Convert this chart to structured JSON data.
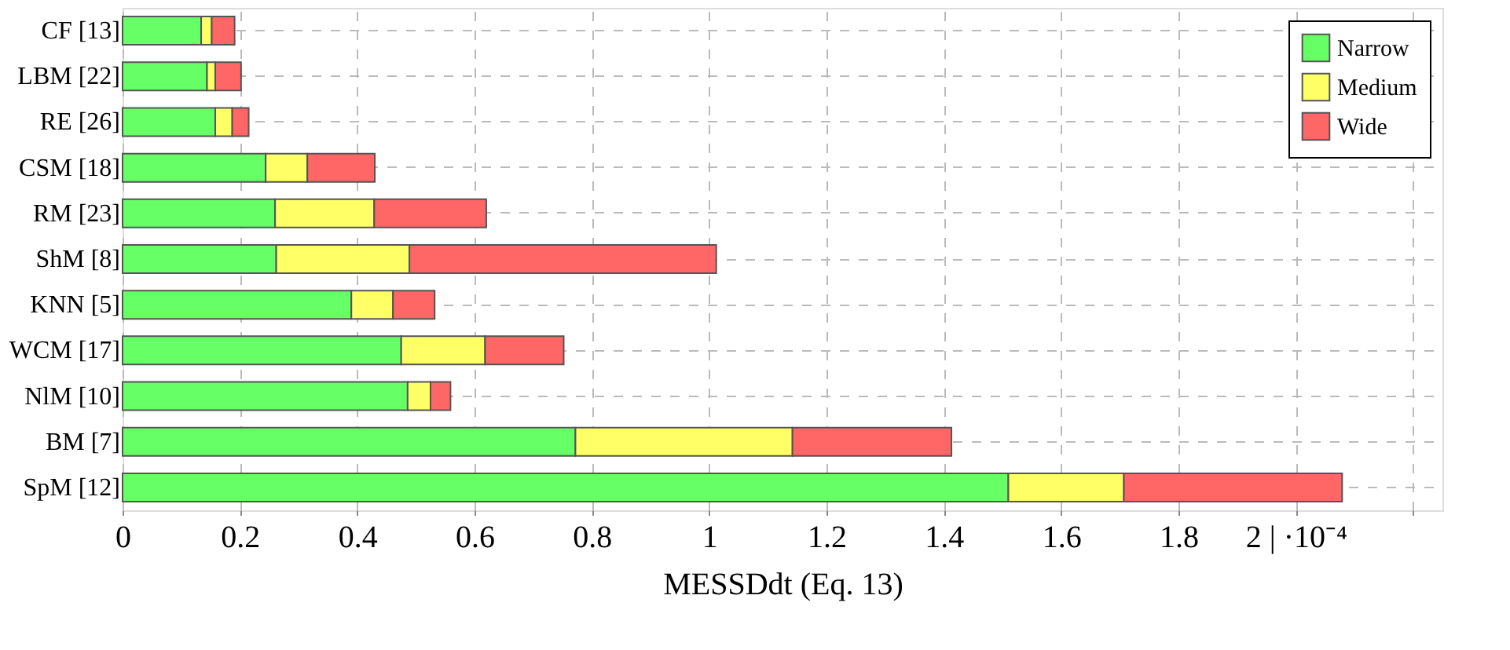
{
  "chart_data": {
    "type": "bar",
    "orientation": "horizontal",
    "stacked": true,
    "xlabel": "MESSDdt (Eq. 13)",
    "categories": [
      "CF [13]",
      "LBM [22]",
      "RE [26]",
      "CSM [18]",
      "RM [23]",
      "ShM [8]",
      "KNN [5]",
      "WCM [17]",
      "NlM [10]",
      "BM [7]",
      "SpM [12]"
    ],
    "series": [
      {
        "name": "Narrow",
        "color": "#66ff66",
        "values": [
          0.134,
          0.144,
          0.158,
          0.244,
          0.26,
          0.262,
          0.39,
          0.475,
          0.486,
          0.772,
          1.51
        ]
      },
      {
        "name": "Medium",
        "color": "#ffff66",
        "values": [
          0.018,
          0.014,
          0.029,
          0.071,
          0.169,
          0.227,
          0.071,
          0.143,
          0.039,
          0.37,
          0.197
        ]
      },
      {
        "name": "Wide",
        "color": "#ff6666",
        "values": [
          0.039,
          0.044,
          0.028,
          0.115,
          0.191,
          0.523,
          0.071,
          0.134,
          0.034,
          0.271,
          0.372
        ]
      }
    ],
    "xlim": [
      0,
      2.25
    ],
    "xticks": [
      0,
      0.2,
      0.4,
      0.6,
      0.8,
      1,
      1.2,
      1.4,
      1.6,
      1.8,
      {
        "value": 2,
        "label": "2 | ·10⁻⁴"
      },
      {
        "value": 2.2,
        "label": null
      }
    ],
    "grid": true,
    "legend": "top right"
  }
}
